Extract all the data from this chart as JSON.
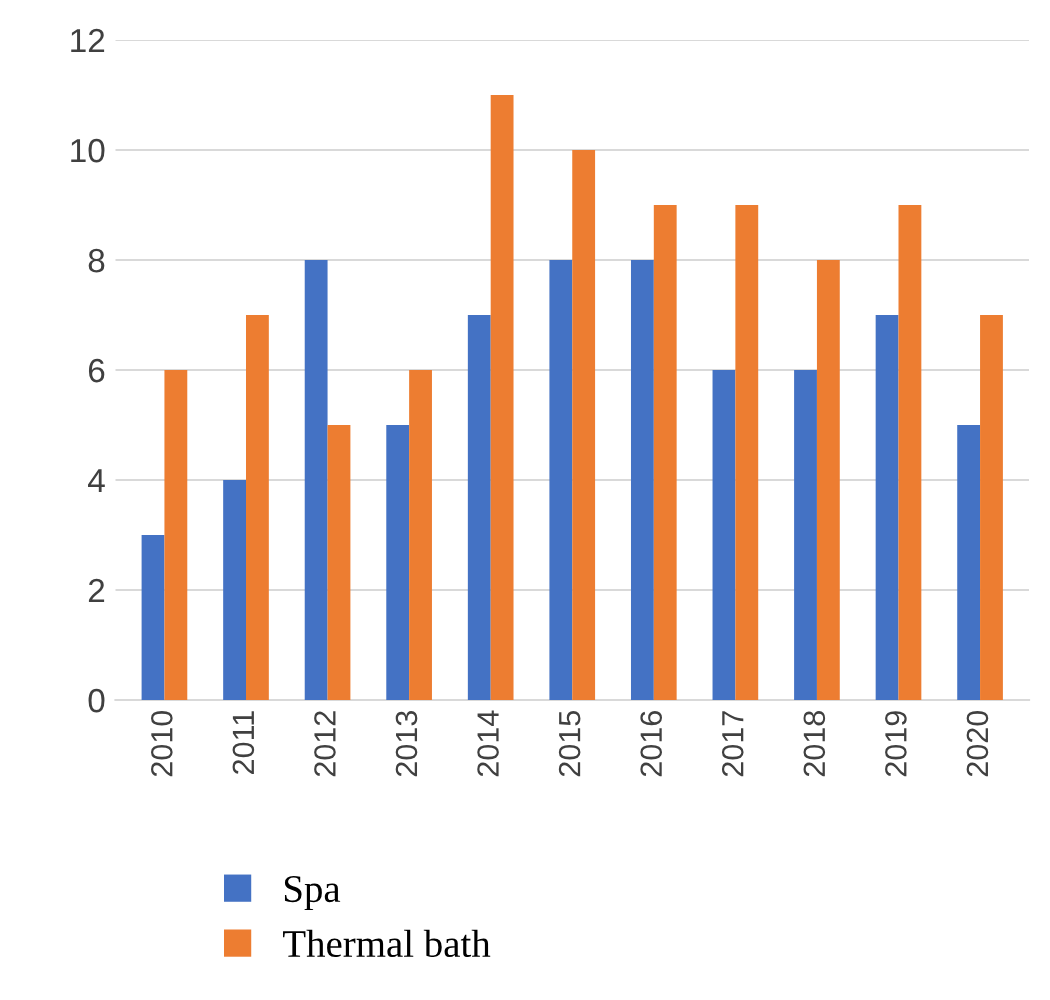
{
  "chart_data": {
    "type": "bar",
    "categories": [
      "2010",
      "2011",
      "2012",
      "2013",
      "2014",
      "2015",
      "2016",
      "2017",
      "2018",
      "2019",
      "2020"
    ],
    "series": [
      {
        "name": "Spa",
        "color": "#4472c4",
        "values": [
          3,
          4,
          8,
          5,
          7,
          8,
          8,
          6,
          6,
          7,
          5
        ]
      },
      {
        "name": "Thermal bath",
        "color": "#ed7d31",
        "values": [
          6,
          7,
          5,
          6,
          11,
          10,
          9,
          9,
          8,
          9,
          7
        ]
      }
    ],
    "ylim": [
      0,
      12
    ],
    "yticks": [
      0,
      2,
      4,
      6,
      8,
      10,
      12
    ],
    "grid": "y",
    "legend": "bottom"
  }
}
